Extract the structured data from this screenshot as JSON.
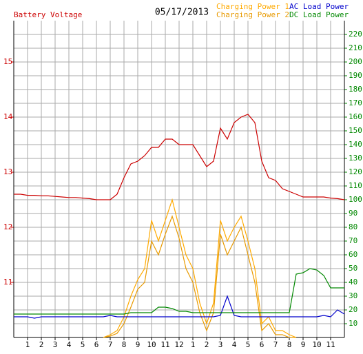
{
  "chart_data": {
    "type": "line",
    "title": "05/17/2013",
    "y_label": "Battery Voltage",
    "x": [
      0,
      0.5,
      1,
      1.5,
      2,
      2.5,
      3,
      3.5,
      4,
      4.5,
      5,
      5.5,
      6,
      6.5,
      7,
      7.5,
      8,
      8.5,
      9,
      9.5,
      10,
      10.5,
      11,
      11.5,
      12,
      12.5,
      13,
      13.5,
      14,
      14.5,
      15,
      15.5,
      16,
      16.5,
      17,
      17.5,
      18,
      18.5,
      19,
      19.5,
      20,
      20.5,
      21,
      21.5,
      22,
      22.5,
      23,
      23.5,
      24
    ],
    "xlim": [
      0,
      24
    ],
    "xticks": [
      1,
      2,
      3,
      4,
      5,
      6,
      7,
      8,
      9,
      10,
      11,
      12,
      {
        "value": 13,
        "label": "1"
      },
      {
        "value": 14,
        "label": "2"
      },
      {
        "value": 15,
        "label": "3"
      },
      {
        "value": 16,
        "label": "4"
      },
      {
        "value": 17,
        "label": "5"
      },
      {
        "value": 18,
        "label": "6"
      },
      {
        "value": 19,
        "label": "7"
      },
      {
        "value": 20,
        "label": "8"
      },
      {
        "value": 21,
        "label": "9"
      },
      {
        "value": 22,
        "label": "10"
      },
      {
        "value": 23,
        "label": "11"
      }
    ],
    "ylim": [
      10,
      15.75
    ],
    "yticks": [
      11,
      12,
      13,
      14,
      15
    ],
    "y2lim": [
      0,
      230
    ],
    "y2ticks": [
      10,
      20,
      30,
      40,
      50,
      60,
      70,
      80,
      90,
      100,
      110,
      120,
      130,
      140,
      150,
      160,
      170,
      180,
      190,
      200,
      210,
      220
    ],
    "grid": true,
    "series": [
      {
        "name": "Battery Voltage",
        "color": "#cc0000",
        "axis": "y",
        "values": [
          12.6,
          12.6,
          12.58,
          12.58,
          12.57,
          12.57,
          12.56,
          12.55,
          12.54,
          12.54,
          12.53,
          12.52,
          12.5,
          12.5,
          12.5,
          12.6,
          12.9,
          13.15,
          13.2,
          13.3,
          13.45,
          13.45,
          13.6,
          13.6,
          13.5,
          13.5,
          13.5,
          13.3,
          13.1,
          13.2,
          13.8,
          13.6,
          13.9,
          14.0,
          14.05,
          13.9,
          13.2,
          12.9,
          12.85,
          12.7,
          12.65,
          12.6,
          12.55,
          12.55,
          12.55,
          12.55,
          12.53,
          12.52,
          12.5
        ]
      },
      {
        "name": "Charging Power 1",
        "color": "#ffaa00",
        "axis": "y2",
        "values": [
          null,
          null,
          null,
          null,
          null,
          null,
          null,
          null,
          null,
          null,
          null,
          null,
          null,
          0,
          2,
          5,
          15,
          30,
          42,
          50,
          85,
          70,
          85,
          100,
          80,
          60,
          50,
          25,
          10,
          25,
          85,
          70,
          80,
          88,
          70,
          50,
          10,
          15,
          5,
          5,
          2,
          0,
          null,
          null,
          null,
          null,
          null,
          null,
          null
        ]
      },
      {
        "name": "Charging Power 2",
        "color": "#e89a00",
        "axis": "y2",
        "values": [
          null,
          null,
          null,
          null,
          null,
          null,
          null,
          null,
          null,
          null,
          null,
          null,
          null,
          0,
          1,
          3,
          10,
          22,
          35,
          40,
          70,
          60,
          75,
          88,
          72,
          50,
          40,
          18,
          5,
          18,
          75,
          60,
          70,
          80,
          60,
          40,
          5,
          10,
          2,
          2,
          0,
          0,
          null,
          null,
          null,
          null,
          null,
          null,
          null
        ]
      },
      {
        "name": "AC Load Power",
        "color": "#0000cc",
        "axis": "y2",
        "values": [
          15,
          15,
          15,
          14,
          15,
          15,
          15,
          15,
          15,
          15,
          15,
          15,
          15,
          15,
          16,
          15,
          15,
          15,
          15,
          15,
          15,
          15,
          15,
          15,
          15,
          15,
          15,
          15,
          15,
          15,
          16,
          30,
          16,
          15,
          15,
          15,
          15,
          15,
          15,
          15,
          15,
          15,
          15,
          15,
          15,
          16,
          15,
          20,
          17
        ]
      },
      {
        "name": "DC Load Power",
        "color": "#008800",
        "axis": "y2",
        "values": [
          17,
          17,
          17,
          17,
          17,
          17,
          17,
          17,
          17,
          17,
          17,
          17,
          17,
          17,
          17,
          17,
          17,
          18,
          18,
          18,
          18,
          22,
          22,
          21,
          19,
          19,
          18,
          18,
          18,
          18,
          18,
          18,
          18,
          18,
          18,
          18,
          18,
          18,
          18,
          18,
          18,
          46,
          47,
          50,
          49,
          45,
          36,
          36,
          36
        ]
      }
    ]
  }
}
